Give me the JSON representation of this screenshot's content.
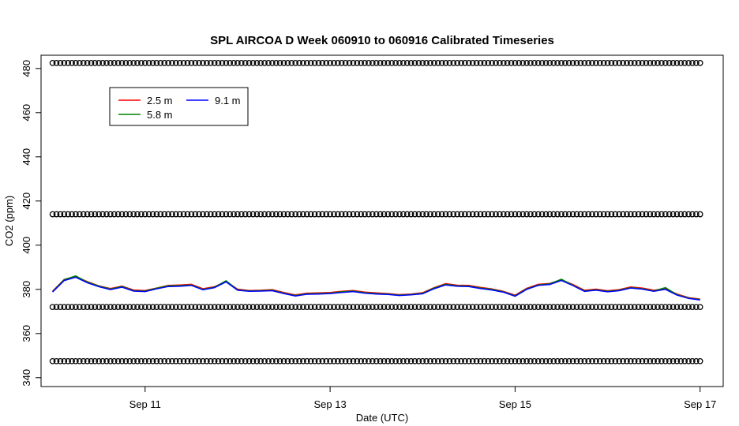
{
  "chart_data": {
    "type": "line",
    "title": "SPL AIRCOA D  Week 060910 to 060916  Calibrated Timeseries",
    "xlabel": "Date (UTC)",
    "ylabel": "CO2 (ppm)",
    "xlim": [
      "2006-09-09T21:00",
      "2006-09-17T06:00"
    ],
    "ylim": [
      336,
      486
    ],
    "x_ticks": [
      {
        "date": "2006-09-11T00:00",
        "label": "Sep 11"
      },
      {
        "date": "2006-09-13T00:00",
        "label": "Sep 13"
      },
      {
        "date": "2006-09-15T00:00",
        "label": "Sep 15"
      },
      {
        "date": "2006-09-17T00:00",
        "label": "Sep 17"
      }
    ],
    "y_ticks": [
      340,
      360,
      380,
      400,
      420,
      440,
      460,
      480
    ],
    "grid": false,
    "legend_position": "top-left",
    "series": [
      {
        "name": "2.5 m",
        "color": "#ff0000",
        "points": [
          [
            "2006-09-10T00:00",
            379.2
          ],
          [
            "2006-09-10T03:00",
            384.5
          ],
          [
            "2006-09-10T06:00",
            385.8
          ],
          [
            "2006-09-10T09:00",
            383.5
          ],
          [
            "2006-09-10T12:00",
            381.6
          ],
          [
            "2006-09-10T15:00",
            380.4
          ],
          [
            "2006-09-10T18:00",
            381.5
          ],
          [
            "2006-09-10T21:00",
            379.7
          ],
          [
            "2006-09-11T00:00",
            379.5
          ],
          [
            "2006-09-11T03:00",
            380.6
          ],
          [
            "2006-09-11T06:00",
            381.8
          ],
          [
            "2006-09-11T09:00",
            382.0
          ],
          [
            "2006-09-11T12:00",
            382.3
          ],
          [
            "2006-09-11T15:00",
            380.3
          ],
          [
            "2006-09-11T18:00",
            381.2
          ],
          [
            "2006-09-11T21:00",
            383.6
          ],
          [
            "2006-09-12T00:00",
            380.1
          ],
          [
            "2006-09-12T03:00",
            379.5
          ],
          [
            "2006-09-12T06:00",
            379.6
          ],
          [
            "2006-09-12T09:00",
            379.9
          ],
          [
            "2006-09-12T12:00",
            378.6
          ],
          [
            "2006-09-12T15:00",
            377.5
          ],
          [
            "2006-09-12T18:00",
            378.3
          ],
          [
            "2006-09-12T21:00",
            378.4
          ],
          [
            "2006-09-13T00:00",
            378.6
          ],
          [
            "2006-09-13T03:00",
            379.1
          ],
          [
            "2006-09-13T06:00",
            379.5
          ],
          [
            "2006-09-13T09:00",
            378.8
          ],
          [
            "2006-09-13T12:00",
            378.4
          ],
          [
            "2006-09-13T15:00",
            378.1
          ],
          [
            "2006-09-13T18:00",
            377.6
          ],
          [
            "2006-09-13T21:00",
            377.9
          ],
          [
            "2006-09-14T00:00",
            378.5
          ],
          [
            "2006-09-14T03:00",
            380.8
          ],
          [
            "2006-09-14T06:00",
            382.6
          ],
          [
            "2006-09-14T09:00",
            381.9
          ],
          [
            "2006-09-14T12:00",
            381.8
          ],
          [
            "2006-09-14T15:00",
            380.9
          ],
          [
            "2006-09-14T18:00",
            380.2
          ],
          [
            "2006-09-14T21:00",
            379.1
          ],
          [
            "2006-09-15T00:00",
            377.4
          ],
          [
            "2006-09-15T03:00",
            380.5
          ],
          [
            "2006-09-15T06:00",
            382.3
          ],
          [
            "2006-09-15T09:00",
            382.7
          ],
          [
            "2006-09-15T12:00",
            384.3
          ],
          [
            "2006-09-15T15:00",
            382.2
          ],
          [
            "2006-09-15T18:00",
            379.6
          ],
          [
            "2006-09-15T21:00",
            380.1
          ],
          [
            "2006-09-16T00:00",
            379.4
          ],
          [
            "2006-09-16T03:00",
            379.9
          ],
          [
            "2006-09-16T06:00",
            381.1
          ],
          [
            "2006-09-16T09:00",
            380.6
          ],
          [
            "2006-09-16T12:00",
            379.6
          ],
          [
            "2006-09-16T15:00",
            380.3
          ],
          [
            "2006-09-16T18:00",
            377.9
          ],
          [
            "2006-09-16T21:00",
            376.3
          ],
          [
            "2006-09-17T00:00",
            375.6
          ]
        ]
      },
      {
        "name": "5.8 m",
        "color": "#008000",
        "points": [
          [
            "2006-09-10T00:00",
            379.0
          ],
          [
            "2006-09-10T03:00",
            384.4
          ],
          [
            "2006-09-10T06:00",
            386.1
          ],
          [
            "2006-09-10T09:00",
            383.3
          ],
          [
            "2006-09-10T12:00",
            381.5
          ],
          [
            "2006-09-10T15:00",
            380.1
          ],
          [
            "2006-09-10T18:00",
            381.3
          ],
          [
            "2006-09-10T21:00",
            379.4
          ],
          [
            "2006-09-11T00:00",
            379.2
          ],
          [
            "2006-09-11T03:00",
            380.5
          ],
          [
            "2006-09-11T06:00",
            381.6
          ],
          [
            "2006-09-11T09:00",
            381.7
          ],
          [
            "2006-09-11T12:00",
            382.0
          ],
          [
            "2006-09-11T15:00",
            380.0
          ],
          [
            "2006-09-11T18:00",
            381.0
          ],
          [
            "2006-09-11T21:00",
            383.9
          ],
          [
            "2006-09-12T00:00",
            379.8
          ],
          [
            "2006-09-12T03:00",
            379.3
          ],
          [
            "2006-09-12T06:00",
            379.4
          ],
          [
            "2006-09-12T09:00",
            379.6
          ],
          [
            "2006-09-12T12:00",
            378.3
          ],
          [
            "2006-09-12T15:00",
            377.2
          ],
          [
            "2006-09-12T18:00",
            378.0
          ],
          [
            "2006-09-12T21:00",
            378.1
          ],
          [
            "2006-09-13T00:00",
            378.3
          ],
          [
            "2006-09-13T03:00",
            378.9
          ],
          [
            "2006-09-13T06:00",
            379.2
          ],
          [
            "2006-09-13T09:00",
            378.5
          ],
          [
            "2006-09-13T12:00",
            378.1
          ],
          [
            "2006-09-13T15:00",
            377.9
          ],
          [
            "2006-09-13T18:00",
            377.4
          ],
          [
            "2006-09-13T21:00",
            377.7
          ],
          [
            "2006-09-14T00:00",
            378.2
          ],
          [
            "2006-09-14T03:00",
            380.6
          ],
          [
            "2006-09-14T06:00",
            382.3
          ],
          [
            "2006-09-14T09:00",
            381.6
          ],
          [
            "2006-09-14T12:00",
            381.5
          ],
          [
            "2006-09-14T15:00",
            380.6
          ],
          [
            "2006-09-14T18:00",
            380.0
          ],
          [
            "2006-09-14T21:00",
            378.9
          ],
          [
            "2006-09-15T00:00",
            377.1
          ],
          [
            "2006-09-15T03:00",
            380.2
          ],
          [
            "2006-09-15T06:00",
            382.0
          ],
          [
            "2006-09-15T09:00",
            382.5
          ],
          [
            "2006-09-15T12:00",
            384.6
          ],
          [
            "2006-09-15T15:00",
            381.9
          ],
          [
            "2006-09-15T18:00",
            379.3
          ],
          [
            "2006-09-15T21:00",
            379.8
          ],
          [
            "2006-09-16T00:00",
            379.1
          ],
          [
            "2006-09-16T03:00",
            379.6
          ],
          [
            "2006-09-16T06:00",
            380.8
          ],
          [
            "2006-09-16T09:00",
            380.3
          ],
          [
            "2006-09-16T12:00",
            379.3
          ],
          [
            "2006-09-16T15:00",
            380.8
          ],
          [
            "2006-09-16T18:00",
            377.6
          ],
          [
            "2006-09-16T21:00",
            376.1
          ],
          [
            "2006-09-17T00:00",
            375.4
          ]
        ]
      },
      {
        "name": "9.1 m",
        "color": "#0000ff",
        "points": [
          [
            "2006-09-10T00:00",
            378.8
          ],
          [
            "2006-09-10T03:00",
            384.0
          ],
          [
            "2006-09-10T06:00",
            385.5
          ],
          [
            "2006-09-10T09:00",
            383.0
          ],
          [
            "2006-09-10T12:00",
            381.2
          ],
          [
            "2006-09-10T15:00",
            379.9
          ],
          [
            "2006-09-10T18:00",
            381.0
          ],
          [
            "2006-09-10T21:00",
            379.2
          ],
          [
            "2006-09-11T00:00",
            379.0
          ],
          [
            "2006-09-11T03:00",
            380.2
          ],
          [
            "2006-09-11T06:00",
            381.3
          ],
          [
            "2006-09-11T09:00",
            381.4
          ],
          [
            "2006-09-11T12:00",
            381.8
          ],
          [
            "2006-09-11T15:00",
            379.8
          ],
          [
            "2006-09-11T18:00",
            380.8
          ],
          [
            "2006-09-11T21:00",
            383.4
          ],
          [
            "2006-09-12T00:00",
            379.6
          ],
          [
            "2006-09-12T03:00",
            379.1
          ],
          [
            "2006-09-12T06:00",
            379.2
          ],
          [
            "2006-09-12T09:00",
            379.4
          ],
          [
            "2006-09-12T12:00",
            378.1
          ],
          [
            "2006-09-12T15:00",
            377.0
          ],
          [
            "2006-09-12T18:00",
            377.8
          ],
          [
            "2006-09-12T21:00",
            377.9
          ],
          [
            "2006-09-13T00:00",
            378.1
          ],
          [
            "2006-09-13T03:00",
            378.6
          ],
          [
            "2006-09-13T06:00",
            379.0
          ],
          [
            "2006-09-13T09:00",
            378.3
          ],
          [
            "2006-09-13T12:00",
            377.9
          ],
          [
            "2006-09-13T15:00",
            377.7
          ],
          [
            "2006-09-13T18:00",
            377.2
          ],
          [
            "2006-09-13T21:00",
            377.5
          ],
          [
            "2006-09-14T00:00",
            378.0
          ],
          [
            "2006-09-14T03:00",
            380.3
          ],
          [
            "2006-09-14T06:00",
            382.0
          ],
          [
            "2006-09-14T09:00",
            381.4
          ],
          [
            "2006-09-14T12:00",
            381.3
          ],
          [
            "2006-09-14T15:00",
            380.4
          ],
          [
            "2006-09-14T18:00",
            379.7
          ],
          [
            "2006-09-14T21:00",
            378.7
          ],
          [
            "2006-09-15T00:00",
            376.9
          ],
          [
            "2006-09-15T03:00",
            380.0
          ],
          [
            "2006-09-15T06:00",
            381.8
          ],
          [
            "2006-09-15T09:00",
            382.2
          ],
          [
            "2006-09-15T12:00",
            384.0
          ],
          [
            "2006-09-15T15:00",
            381.7
          ],
          [
            "2006-09-15T18:00",
            379.1
          ],
          [
            "2006-09-15T21:00",
            379.6
          ],
          [
            "2006-09-16T00:00",
            378.9
          ],
          [
            "2006-09-16T03:00",
            379.4
          ],
          [
            "2006-09-16T06:00",
            380.6
          ],
          [
            "2006-09-16T09:00",
            380.1
          ],
          [
            "2006-09-16T12:00",
            379.1
          ],
          [
            "2006-09-16T15:00",
            380.0
          ],
          [
            "2006-09-16T18:00",
            377.4
          ],
          [
            "2006-09-16T21:00",
            375.9
          ],
          [
            "2006-09-17T00:00",
            375.2
          ]
        ]
      },
      {
        "name": "",
        "marker": "circle",
        "color": "#000000",
        "levels": [
          482.5,
          414.0,
          372.0,
          347.5
        ],
        "x_start": "2006-09-10T00:00",
        "x_end": "2006-09-17T00:00",
        "interval_hours": 1
      }
    ]
  }
}
